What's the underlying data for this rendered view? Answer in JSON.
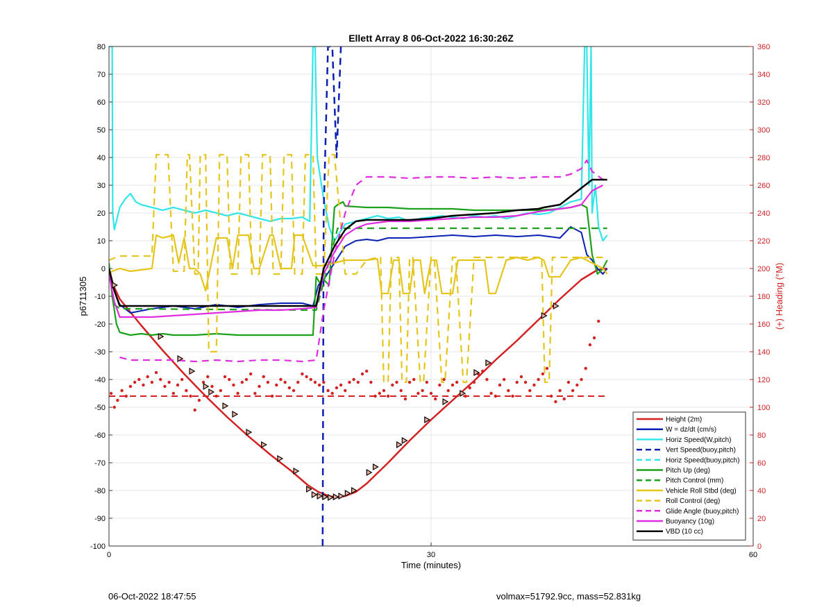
{
  "footer": {
    "left_text": "06-Oct-2022 18:47:55",
    "right_text": "volmax=51792.9cc, mass=52.831kg"
  },
  "chart_data": {
    "type": "line",
    "title": "Ellett Array 8 06-Oct-2022 16:30:26Z",
    "xlabel": "Time (minutes)",
    "ylabel": "p6711305",
    "y2label": "(+) Heading (°M)",
    "xlim": [
      0,
      60
    ],
    "ylim": [
      -100,
      80
    ],
    "y2lim": [
      0,
      360
    ],
    "x_ticks": [
      0,
      30,
      60
    ],
    "y_ticks": [
      -100,
      -90,
      -80,
      -70,
      -60,
      -50,
      -40,
      -30,
      -20,
      -10,
      0,
      10,
      20,
      30,
      40,
      50,
      60,
      70,
      80
    ],
    "y2_ticks": [
      0,
      20,
      40,
      60,
      80,
      100,
      120,
      140,
      160,
      180,
      200,
      220,
      240,
      260,
      280,
      300,
      320,
      340,
      360
    ],
    "grid": true,
    "legend_position": "bottom-right",
    "colors": {
      "red": "#d42020",
      "blue": "#0a1fb4",
      "cyan": "#33e5e8",
      "green": "#1aa01a",
      "yellow": "#e5c51c",
      "magenta": "#e02ce0",
      "black": "#000000",
      "axis2": "#d42020"
    },
    "series": [
      {
        "name": "Height (2m)",
        "color": "#d42020",
        "style": "solid",
        "width": 2.5,
        "x": [
          0,
          0.4,
          1,
          3,
          5,
          7,
          9,
          11,
          13,
          15,
          17,
          18.5,
          19.5,
          20.5,
          21.2,
          22,
          23,
          24,
          26,
          28,
          30,
          32,
          34,
          36,
          38,
          40,
          42,
          44,
          45.5,
          46.4
        ],
        "y": [
          0,
          -6,
          -11,
          -20.5,
          -29.5,
          -38,
          -46,
          -53.5,
          -60.5,
          -67,
          -73,
          -78,
          -80.5,
          -82,
          -82.5,
          -82,
          -80.5,
          -77.5,
          -70,
          -62,
          -54.5,
          -47.5,
          -40.5,
          -33,
          -26,
          -18.5,
          -11,
          -4,
          -0.5,
          0
        ]
      },
      {
        "name": "W = dz/dt (cm/s)",
        "color": "#0a1fb4",
        "style": "solid",
        "width": 2,
        "x": [
          0,
          0.5,
          1,
          2,
          4,
          6,
          8,
          10,
          12,
          14,
          16,
          18,
          19,
          19.5,
          20,
          21,
          22,
          23,
          24,
          25,
          26,
          28,
          30,
          32,
          34,
          36,
          38,
          40,
          42,
          43,
          44,
          44.5,
          45,
          45.5,
          46,
          46.4
        ],
        "y": [
          -2,
          -8,
          -13,
          -16,
          -14.5,
          -13.5,
          -14.5,
          -13,
          -14,
          -13,
          -12.5,
          -12.5,
          -13.5,
          -6,
          -4,
          2,
          8,
          10,
          10.5,
          10,
          11,
          11,
          11.5,
          12,
          11.5,
          12,
          11.5,
          12,
          11,
          15,
          13,
          5,
          3,
          0,
          -2,
          0
        ]
      },
      {
        "name": "Horiz Speed(W,pitch)",
        "color": "#33e5e8",
        "style": "solid",
        "width": 2.2,
        "x": [
          0,
          0.3,
          0.35,
          0.5,
          1,
          1.5,
          2,
          2.5,
          3,
          4,
          5,
          6,
          7,
          8,
          9,
          10,
          11,
          12,
          13,
          14,
          15,
          16,
          17,
          18,
          18.7,
          19,
          19.2,
          19.4,
          19.6,
          20,
          20.5,
          21,
          22,
          23,
          24,
          25,
          26,
          27,
          28,
          29,
          30,
          31,
          32,
          33,
          34,
          35,
          36,
          37,
          38,
          39,
          40,
          41,
          42,
          43,
          44,
          44.3,
          44.5,
          44.7,
          44.9,
          45,
          45.3,
          45.6,
          46,
          46.4
        ],
        "y": [
          80,
          80,
          20,
          14,
          22,
          25,
          27,
          24,
          23,
          22,
          21,
          22,
          21,
          20,
          21,
          20,
          19,
          20,
          19,
          18,
          17,
          18,
          18,
          18.5,
          17,
          80,
          80,
          40,
          35,
          25,
          15,
          10,
          16,
          17,
          18,
          19,
          18,
          18.5,
          17,
          18,
          18.5,
          19,
          18.5,
          18,
          19,
          18.5,
          19,
          18,
          19,
          20,
          19.5,
          20,
          22,
          24,
          25,
          80,
          80,
          30,
          80,
          20,
          30,
          15,
          10,
          12
        ]
      },
      {
        "name": "Vert Speed(buoy,pitch)",
        "color": "#0a1fb4",
        "style": "dashed",
        "width": 2.5,
        "x": [
          19.9,
          20,
          20.4,
          20.8,
          21.2,
          21.6
        ],
        "y": [
          -100,
          20,
          80,
          80,
          40,
          80
        ]
      },
      {
        "name": "Horiz Speed(buoy,pitch)",
        "color": "#33e5e8",
        "style": "dashed",
        "width": 2.2,
        "x": [],
        "y": []
      },
      {
        "name": "Pitch Up (deg)",
        "color": "#1aa01a",
        "style": "solid",
        "width": 2.2,
        "x": [
          0,
          0.3,
          0.7,
          1,
          2,
          3,
          4,
          5,
          6,
          8,
          10,
          12,
          14,
          16,
          18,
          19,
          19.3,
          19.6,
          20,
          20.5,
          21,
          21.3,
          21.8,
          22,
          24,
          26,
          28,
          30,
          32,
          34,
          36,
          38,
          40,
          42,
          43,
          44,
          44.5,
          45,
          45.5,
          46,
          46.4
        ],
        "y": [
          2,
          -10,
          -20,
          -23,
          -24,
          -23.5,
          -24,
          -23.5,
          -24,
          -24,
          -23.5,
          -24,
          -24,
          -24,
          -24,
          -24,
          -3,
          -5,
          -4,
          -6,
          22,
          23,
          24,
          22.5,
          22,
          22,
          21.5,
          21.5,
          21.5,
          21,
          21,
          21,
          21,
          21.5,
          22,
          23,
          22,
          5,
          -2,
          0,
          3
        ]
      },
      {
        "name": "Pitch Control (mm)",
        "color": "#1aa01a",
        "style": "dashed",
        "width": 2.2,
        "x": [
          0,
          0.5,
          1,
          19.3,
          20,
          21,
          21.3,
          26,
          46.4
        ],
        "y": [
          0,
          -13,
          -14.5,
          -15,
          -5,
          10,
          14.5,
          14.5,
          14.5
        ]
      },
      {
        "name": "Vehicle Roll Stbd (deg)",
        "color": "#e5c51c",
        "style": "solid",
        "width": 2.2,
        "x": [
          0,
          0.3,
          1,
          2,
          4,
          4.4,
          5,
          6,
          6.5,
          7,
          7.5,
          8,
          8.5,
          9,
          10,
          11,
          11.5,
          12,
          13,
          13.5,
          14,
          15,
          15.3,
          16,
          17,
          17.3,
          18,
          19,
          20,
          21,
          22,
          23,
          24,
          25,
          25.4,
          26,
          26.5,
          27,
          27.4,
          28,
          28.4,
          29,
          29.4,
          30,
          30.5,
          31,
          32,
          32.5,
          33,
          34,
          35,
          35.4,
          36,
          37,
          38,
          39,
          40,
          40.5,
          41,
          42,
          43,
          44,
          45,
          46,
          46.4
        ],
        "y": [
          -2,
          -1,
          0,
          -1,
          0,
          12,
          11,
          12,
          2,
          11,
          0,
          0,
          -2,
          -8,
          11,
          11,
          0,
          12,
          12,
          0,
          0,
          12,
          12,
          0,
          0,
          12,
          12,
          1,
          1,
          2,
          3,
          3,
          3,
          3.5,
          -9,
          -9,
          3,
          3,
          -9,
          -9,
          3,
          3,
          -9,
          3,
          3,
          -9,
          -9,
          3,
          3,
          3,
          3,
          -9,
          -9,
          3,
          4,
          3,
          4,
          3,
          -3,
          -3,
          3,
          4,
          2,
          0,
          -2
        ]
      },
      {
        "name": "Roll Control (deg)",
        "color": "#e5c51c",
        "style": "dashed",
        "width": 2.2,
        "x": [
          0,
          1,
          3,
          4,
          4.4,
          5,
          5.5,
          6,
          7,
          7.3,
          7.5,
          8,
          8.3,
          8.5,
          9,
          9.3,
          10,
          10.3,
          11,
          11.3,
          12,
          12.3,
          13,
          13.3,
          14,
          14.3,
          15,
          15.3,
          16,
          16.3,
          17,
          17.3,
          18,
          18.3,
          19,
          19.3,
          20,
          20.5,
          21,
          22,
          23,
          24,
          25,
          25.3,
          25.6,
          26,
          26.3,
          27,
          27.3,
          27.7,
          28,
          28.3,
          29,
          29.3,
          30,
          30.3,
          31,
          31.3,
          32,
          32.3,
          33,
          33.3,
          34,
          34.3,
          35,
          35.3,
          36,
          36.3,
          37,
          38,
          39,
          40,
          40.3,
          40.6,
          41,
          41.3,
          42,
          43,
          44,
          45,
          46,
          46.4
        ],
        "y": [
          3,
          4.5,
          4.5,
          4.5,
          41,
          41,
          41,
          -1,
          -1,
          41,
          41,
          -2,
          -2,
          41,
          41,
          -30,
          -30,
          41,
          41,
          -2,
          -2,
          41,
          41,
          -2,
          -2,
          41,
          41,
          -2,
          -2,
          41,
          41,
          -2,
          -2,
          41,
          41,
          -2,
          -2,
          41,
          41,
          -2,
          -2,
          3,
          4,
          4,
          -41,
          -41,
          4,
          4,
          -41,
          -41,
          4,
          4,
          -41,
          -41,
          4,
          4,
          -41,
          -41,
          4,
          4,
          -41,
          -41,
          4,
          4,
          4,
          4,
          4,
          4,
          4,
          4,
          4,
          4,
          4,
          -41,
          -41,
          4,
          4,
          4,
          4,
          4,
          4,
          4
        ]
      },
      {
        "name": "Glide Angle (buoy,pitch)",
        "color": "#e02ce0",
        "style": "dashed",
        "width": 2.2,
        "x": [
          1,
          2,
          4,
          6,
          8,
          10,
          12,
          14,
          16,
          18,
          19.3,
          20,
          21,
          22,
          23,
          24,
          26,
          28,
          30,
          32,
          34,
          36,
          38,
          40,
          42,
          43,
          44,
          44.5,
          45,
          46
        ],
        "y": [
          -32,
          -33,
          -33,
          -33,
          -33.5,
          -33,
          -33.5,
          -33,
          -33,
          -33.5,
          -33,
          -15,
          5,
          20,
          30,
          33,
          33,
          32.5,
          33,
          33,
          32.5,
          33,
          32.5,
          33,
          33,
          34,
          36,
          39,
          35,
          32
        ]
      },
      {
        "name": "Buoyancy (10g)",
        "color": "#e02ce0",
        "style": "solid",
        "width": 2.2,
        "x": [
          0,
          0.5,
          1,
          2,
          4,
          6,
          8,
          10,
          12,
          14,
          16,
          18,
          19.3,
          20,
          21,
          22,
          23,
          24,
          26,
          28,
          30,
          32,
          34,
          36,
          38,
          40,
          42,
          43,
          44,
          45,
          46
        ],
        "y": [
          -2,
          -12,
          -17.5,
          -17.5,
          -17.5,
          -17,
          -16.5,
          -16,
          -15.5,
          -15,
          -15,
          -14.5,
          -14,
          -2,
          6,
          12,
          14.5,
          16,
          17,
          17,
          17.5,
          18,
          18.5,
          18.5,
          19,
          20.5,
          21.5,
          22,
          23,
          28,
          30
        ]
      },
      {
        "name": "VBD (10 cc)",
        "color": "#000000",
        "style": "solid",
        "width": 2.5,
        "x": [
          0,
          0.5,
          1,
          2,
          4,
          6,
          8,
          10,
          12,
          14,
          16,
          18,
          19.3,
          20,
          21,
          22,
          23,
          24,
          26,
          28,
          30,
          32,
          34,
          36,
          38,
          40,
          40.5,
          42,
          43,
          44,
          45,
          46.4
        ],
        "y": [
          0,
          -8,
          -13.5,
          -13.5,
          -13.5,
          -13.5,
          -13.5,
          -13.5,
          -13.5,
          -13.5,
          -13.5,
          -13.5,
          -13.5,
          0,
          8,
          14,
          17,
          17.5,
          17.5,
          17.5,
          18,
          19,
          19.5,
          20,
          21,
          21.5,
          22,
          23,
          26,
          29,
          32,
          32
        ]
      }
    ],
    "heading_series": {
      "name": "Heading",
      "color": "#d42020",
      "axis": "right",
      "x": [
        0.2,
        0.5,
        0.8,
        1.2,
        1.6,
        2.0,
        2.4,
        2.8,
        3.2,
        3.6,
        4.0,
        4.4,
        4.8,
        5.2,
        5.6,
        6.0,
        6.4,
        6.8,
        7.2,
        7.6,
        8.0,
        8.4,
        8.8,
        9.2,
        9.6,
        10.0,
        10.4,
        10.8,
        11.2,
        11.6,
        12.0,
        12.4,
        12.8,
        13.2,
        13.6,
        14.0,
        14.4,
        14.8,
        15.2,
        15.6,
        16.0,
        16.4,
        16.8,
        17.2,
        17.6,
        18.0,
        18.4,
        18.8,
        19.2,
        19.6,
        20.0,
        20.4,
        20.8,
        21.2,
        21.6,
        22.0,
        22.4,
        22.8,
        23.2,
        23.6,
        24.0,
        24.4,
        24.8,
        25.2,
        25.6,
        26.0,
        26.4,
        26.8,
        27.2,
        27.6,
        28.0,
        28.4,
        28.8,
        29.2,
        29.6,
        30.0,
        30.4,
        30.8,
        31.2,
        31.6,
        32.0,
        32.4,
        32.8,
        33.2,
        33.6,
        34.0,
        34.4,
        34.8,
        35.2,
        35.6,
        36.0,
        36.4,
        36.8,
        37.2,
        37.6,
        38.0,
        38.4,
        38.8,
        39.2,
        39.6,
        40.0,
        40.4,
        40.8,
        41.2,
        41.6,
        42.0,
        42.4,
        42.8,
        43.2,
        43.6,
        44.0,
        44.4,
        44.8,
        45.2,
        45.6
      ],
      "y": [
        110,
        100,
        105,
        112,
        108,
        115,
        118,
        120,
        116,
        122,
        118,
        125,
        120,
        115,
        118,
        110,
        116,
        120,
        112,
        108,
        98,
        105,
        118,
        122,
        115,
        108,
        112,
        122,
        120,
        116,
        110,
        118,
        120,
        124,
        110,
        115,
        122,
        118,
        108,
        116,
        120,
        118,
        114,
        112,
        118,
        124,
        122,
        120,
        118,
        116,
        118,
        112,
        110,
        114,
        116,
        112,
        118,
        120,
        118,
        124,
        126,
        118,
        108,
        110,
        112,
        108,
        116,
        118,
        112,
        106,
        118,
        120,
        110,
        112,
        118,
        110,
        106,
        116,
        120,
        112,
        116,
        118,
        110,
        108,
        114,
        118,
        124,
        126,
        120,
        110,
        108,
        116,
        120,
        112,
        108,
        118,
        122,
        118,
        112,
        116,
        120,
        124,
        128,
        108,
        104,
        112,
        106,
        118,
        112,
        116,
        120,
        128,
        145,
        150,
        162
      ]
    },
    "reference_line": {
      "color": "#d42020",
      "style": "dashed",
      "x": [
        0,
        46.4
      ],
      "y": [
        -46,
        -46
      ]
    },
    "markers": {
      "x": [
        0.5,
        4.8,
        6.6,
        7.7,
        9.0,
        9.5,
        10.8,
        11.7,
        13,
        14.4,
        15.9,
        17.4,
        18.6,
        19.1,
        19.6,
        20.1,
        20.6,
        21.1,
        21.6,
        22.2,
        22.8,
        24.2,
        24.8,
        27.0,
        27.5,
        29.6,
        31.3,
        32.9,
        34.2,
        35.3,
        40.5,
        41.6
      ],
      "y": [
        -6,
        -24.5,
        -32.5,
        -37,
        -42.5,
        -44.5,
        -49.5,
        -52.5,
        -59,
        -63.5,
        -68.5,
        -73,
        -79.5,
        -81.5,
        -82,
        -82.3,
        -82.5,
        -82.3,
        -82,
        -81,
        -80,
        -73.5,
        -71.5,
        -63.5,
        -62,
        -54.5,
        -48,
        -45,
        -37.5,
        -34,
        -17,
        -13.5
      ]
    }
  }
}
